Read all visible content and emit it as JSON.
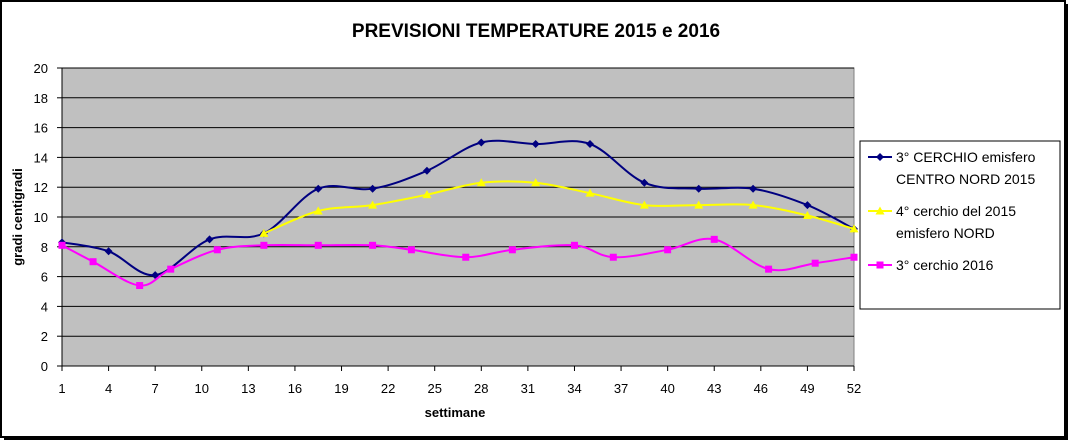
{
  "chart_data": {
    "type": "line",
    "title": "PREVISIONI TEMPERATURE 2015 e 2016",
    "xlabel": "settimane",
    "ylabel": "gradi centigradi",
    "xlim": [
      1,
      52
    ],
    "ylim": [
      0,
      20
    ],
    "x_ticks": [
      1,
      4,
      7,
      10,
      13,
      16,
      19,
      22,
      25,
      28,
      31,
      34,
      37,
      40,
      43,
      46,
      49,
      52
    ],
    "y_ticks": [
      0,
      2,
      4,
      6,
      8,
      10,
      12,
      14,
      16,
      18,
      20
    ],
    "grid": "horizontal",
    "legend_position": "right",
    "plot_background": "#c0c0c0",
    "series": [
      {
        "name": "3° CERCHIO emisfero CENTRO NORD 2015",
        "name_lines": [
          "3° CERCHIO emisfero",
          "CENTRO NORD 2015"
        ],
        "color": "#000080",
        "marker": "diamond",
        "x": [
          1,
          4,
          7,
          10.5,
          14,
          17.5,
          21,
          24.5,
          28,
          31.5,
          35,
          38.5,
          42,
          45.5,
          49,
          52
        ],
        "values": [
          8.3,
          7.7,
          6.1,
          8.5,
          8.9,
          11.9,
          11.9,
          13.1,
          15.0,
          14.9,
          14.9,
          12.3,
          11.9,
          11.9,
          10.8,
          9.2
        ]
      },
      {
        "name": "4° cerchio del 2015 emisfero NORD",
        "name_lines": [
          "4° cerchio del 2015",
          "emisfero NORD"
        ],
        "color": "#ffff00",
        "marker": "triangle",
        "x": [
          14,
          17.5,
          21,
          24.5,
          28,
          31.5,
          35,
          38.5,
          42,
          45.5,
          49,
          52
        ],
        "values": [
          8.9,
          10.4,
          10.8,
          11.5,
          12.3,
          12.3,
          11.6,
          10.8,
          10.8,
          10.8,
          10.1,
          9.2
        ]
      },
      {
        "name": "3° cerchio 2016",
        "name_lines": [
          "3° cerchio 2016"
        ],
        "color": "#ff00ff",
        "marker": "square",
        "x": [
          1,
          3,
          6,
          8,
          11,
          14,
          17.5,
          21,
          23.5,
          27,
          30,
          34,
          36.5,
          40,
          43,
          46.5,
          49.5,
          52
        ],
        "values": [
          8.1,
          7.0,
          5.4,
          6.5,
          7.8,
          8.1,
          8.1,
          8.1,
          7.8,
          7.3,
          7.8,
          8.1,
          7.3,
          7.8,
          8.5,
          6.5,
          6.9,
          7.3
        ]
      }
    ]
  }
}
